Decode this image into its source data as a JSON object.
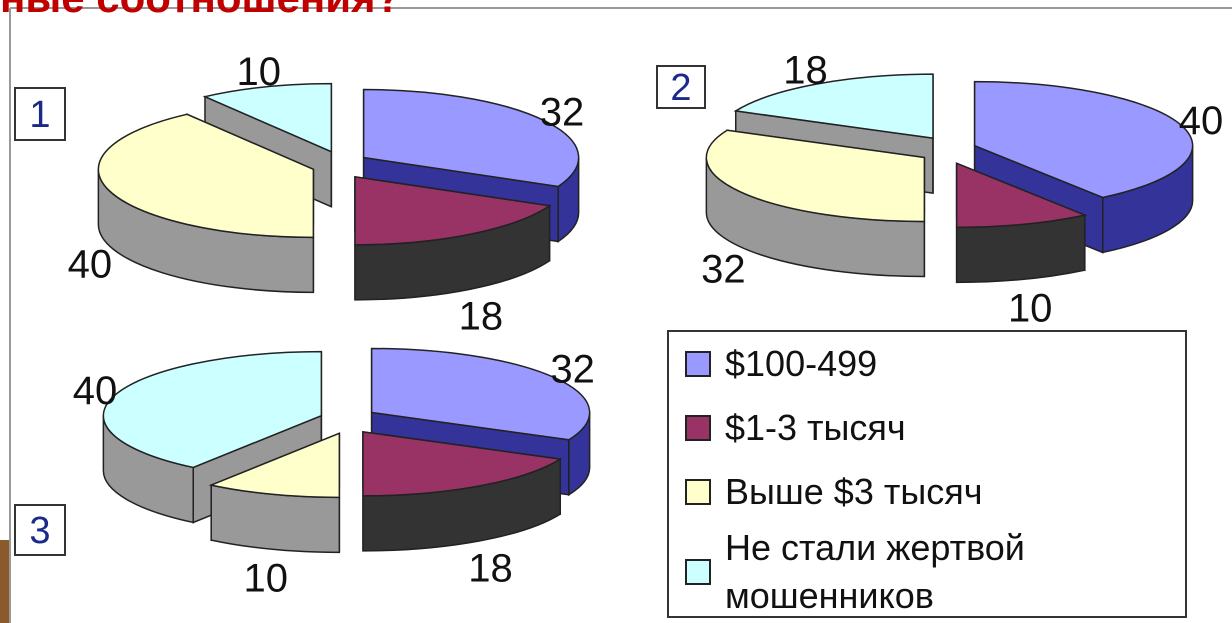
{
  "title": "ные соотношения?",
  "legend": {
    "labels": [
      "$100-499",
      "$1-3 тысяч",
      "Выше $3 тысяч",
      "Не стали жертвой мошенников"
    ],
    "colors": [
      "#9999ff",
      "#993366",
      "#ffffcc",
      "#ccffff"
    ],
    "side_colors": [
      "#333399",
      "#333333",
      "#999999",
      "#999999"
    ]
  },
  "chart_data": [
    {
      "type": "pie",
      "title": "1",
      "values": [
        32,
        18,
        40,
        10
      ]
    },
    {
      "type": "pie",
      "title": "2",
      "values": [
        40,
        10,
        32,
        18
      ]
    },
    {
      "type": "pie",
      "title": "3",
      "values": [
        32,
        18,
        10,
        40
      ]
    }
  ]
}
